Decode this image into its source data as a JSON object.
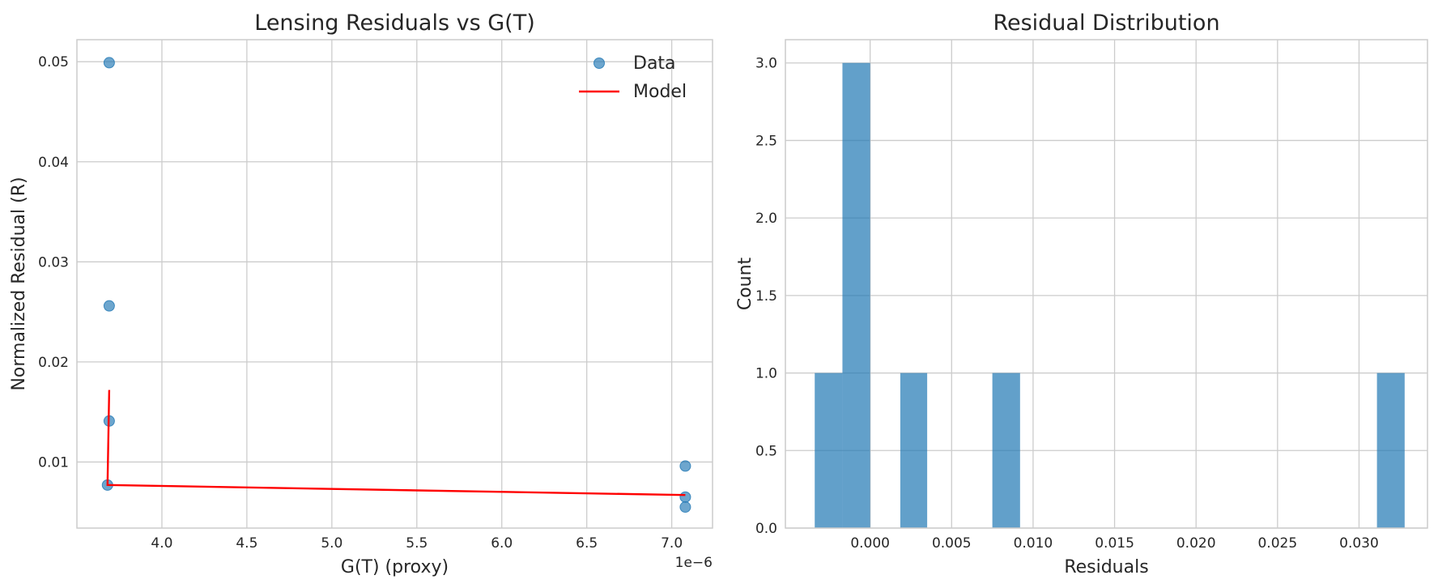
{
  "chart_data": [
    {
      "type": "scatter",
      "title": "Lensing Residuals vs G(T)",
      "xlabel": "G(T) (proxy)",
      "ylabel": "Normalized Residual (R)",
      "x_offset_text": "1e−6",
      "xlim": [
        3.5,
        7.24
      ],
      "ylim": [
        0.0034,
        0.0522
      ],
      "xticks": [
        4.0,
        4.5,
        5.0,
        5.5,
        6.0,
        6.5,
        7.0
      ],
      "xtick_labels": [
        "4.0",
        "4.5",
        "5.0",
        "5.5",
        "6.0",
        "6.5",
        "7.0"
      ],
      "yticks": [
        0.01,
        0.02,
        0.03,
        0.04,
        0.05
      ],
      "ytick_labels": [
        "0.01",
        "0.02",
        "0.03",
        "0.04",
        "0.05"
      ],
      "grid": true,
      "legend_position": "top-right",
      "series": [
        {
          "name": "Data",
          "kind": "scatter",
          "color": "#1f77b4",
          "x": [
            3.69,
            3.69,
            3.69,
            3.68,
            7.08,
            7.08,
            7.08
          ],
          "y": [
            0.0499,
            0.0256,
            0.0141,
            0.0077,
            0.0096,
            0.0065,
            0.0055
          ]
        },
        {
          "name": "Model",
          "kind": "line",
          "color": "#ff0000",
          "x": [
            3.69,
            3.68,
            7.08
          ],
          "y": [
            0.0172,
            0.0077,
            0.0067
          ]
        }
      ]
    },
    {
      "type": "bar",
      "title": "Residual Distribution",
      "xlabel": "Residuals",
      "ylabel": "Count",
      "xlim": [
        -0.0052,
        0.0342
      ],
      "ylim": [
        0,
        3.15
      ],
      "xticks": [
        0.0,
        0.005,
        0.01,
        0.015,
        0.02,
        0.025,
        0.03
      ],
      "xtick_labels": [
        "0.000",
        "0.005",
        "0.010",
        "0.015",
        "0.020",
        "0.025",
        "0.030"
      ],
      "yticks": [
        0,
        0.5,
        1.0,
        1.5,
        2.0,
        2.5,
        3.0
      ],
      "ytick_labels": [
        "0.0",
        "0.5",
        "1.0",
        "1.5",
        "2.0",
        "2.5",
        "3.0"
      ],
      "grid": true,
      "color": "#1f77b4",
      "bins": [
        {
          "start": -0.0034,
          "end": -0.0017,
          "count": 1
        },
        {
          "start": -0.0017,
          "end": 0.0,
          "count": 3
        },
        {
          "start": 0.00185,
          "end": 0.0035,
          "count": 1
        },
        {
          "start": 0.0075,
          "end": 0.0092,
          "count": 1
        },
        {
          "start": 0.0311,
          "end": 0.0328,
          "count": 1
        }
      ]
    }
  ]
}
